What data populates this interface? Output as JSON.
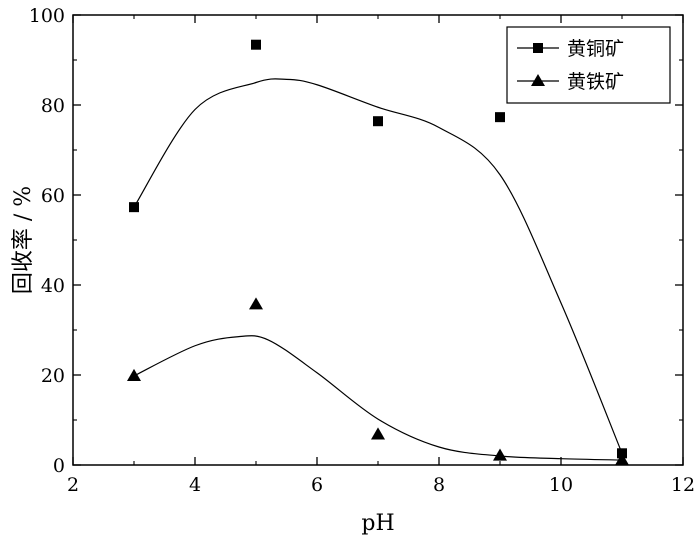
{
  "chart_data": {
    "type": "scatter",
    "title": "",
    "xlabel": "pH",
    "ylabel": "回收率 / %",
    "xlim": [
      2,
      12
    ],
    "ylim": [
      0,
      100
    ],
    "xticks": [
      2,
      4,
      6,
      8,
      10,
      12
    ],
    "yticks": [
      0,
      20,
      40,
      60,
      80,
      100
    ],
    "grid": false,
    "legend_position": "top-right",
    "series": [
      {
        "name": "黄铜矿",
        "marker": "square",
        "color": "#000000",
        "points": [
          {
            "x": 3,
            "y": 57.3
          },
          {
            "x": 5,
            "y": 93.4
          },
          {
            "x": 7,
            "y": 76.4
          },
          {
            "x": 9,
            "y": 77.3
          },
          {
            "x": 11,
            "y": 2.6
          }
        ],
        "fit_curve": [
          {
            "x": 3,
            "y": 57.3
          },
          {
            "x": 4,
            "y": 79.0
          },
          {
            "x": 5,
            "y": 85.0
          },
          {
            "x": 5.5,
            "y": 85.7
          },
          {
            "x": 6,
            "y": 84.5
          },
          {
            "x": 7,
            "y": 79.5
          },
          {
            "x": 8,
            "y": 75.0
          },
          {
            "x": 9,
            "y": 64.5
          },
          {
            "x": 10,
            "y": 36.0
          },
          {
            "x": 11,
            "y": 2.6
          }
        ]
      },
      {
        "name": "黄铁矿",
        "marker": "triangle",
        "color": "#000000",
        "points": [
          {
            "x": 3,
            "y": 19.8
          },
          {
            "x": 5,
            "y": 35.7
          },
          {
            "x": 7,
            "y": 6.8
          },
          {
            "x": 9,
            "y": 2.1
          },
          {
            "x": 11,
            "y": 1.1
          }
        ],
        "fit_curve": [
          {
            "x": 3,
            "y": 19.8
          },
          {
            "x": 4,
            "y": 26.5
          },
          {
            "x": 4.7,
            "y": 28.5
          },
          {
            "x": 5.2,
            "y": 27.8
          },
          {
            "x": 6,
            "y": 20.5
          },
          {
            "x": 7,
            "y": 10.2
          },
          {
            "x": 8,
            "y": 4.0
          },
          {
            "x": 9,
            "y": 2.0
          },
          {
            "x": 10,
            "y": 1.4
          },
          {
            "x": 11,
            "y": 1.1
          }
        ]
      }
    ]
  }
}
